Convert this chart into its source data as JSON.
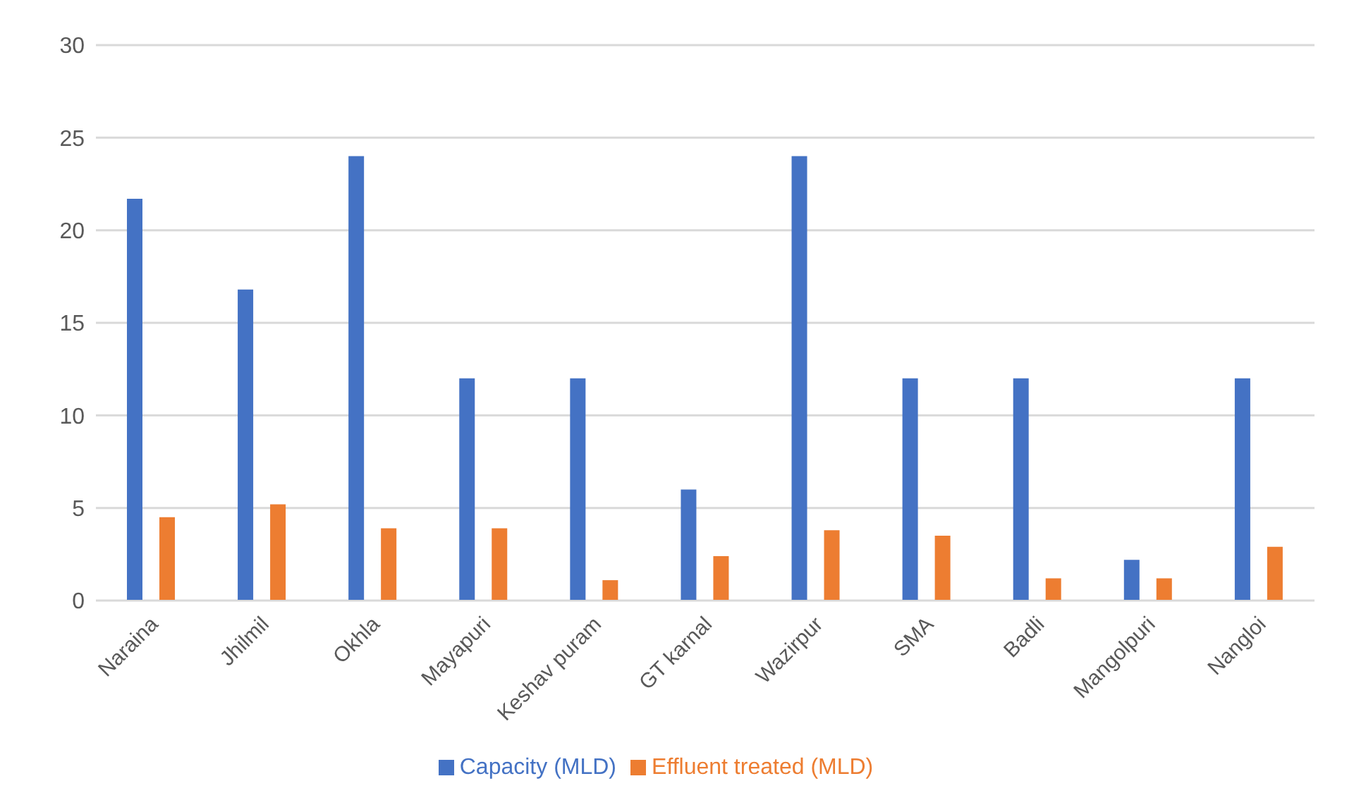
{
  "chart_data": {
    "type": "bar",
    "categories": [
      "Naraina",
      "Jhilmil",
      "Okhla",
      "Mayapuri",
      "Keshav puram",
      "GT karnal",
      "Wazirpur",
      "SMA",
      "Badli",
      "Mangolpuri",
      "Nangloi"
    ],
    "series": [
      {
        "name": "Capacity (MLD)",
        "color": "#4472c4",
        "values": [
          21.7,
          16.8,
          24,
          12,
          12,
          6,
          24,
          12,
          12,
          2.2,
          12
        ]
      },
      {
        "name": "Effluent treated (MLD)",
        "color": "#ed7d31",
        "values": [
          4.5,
          5.2,
          3.9,
          3.9,
          1.1,
          2.4,
          3.8,
          3.5,
          1.2,
          1.2,
          2.9
        ]
      }
    ],
    "ylim": [
      0,
      30
    ],
    "yticks": [
      0,
      5,
      10,
      15,
      20,
      25,
      30
    ],
    "grid": "y",
    "legend": "bottom"
  }
}
